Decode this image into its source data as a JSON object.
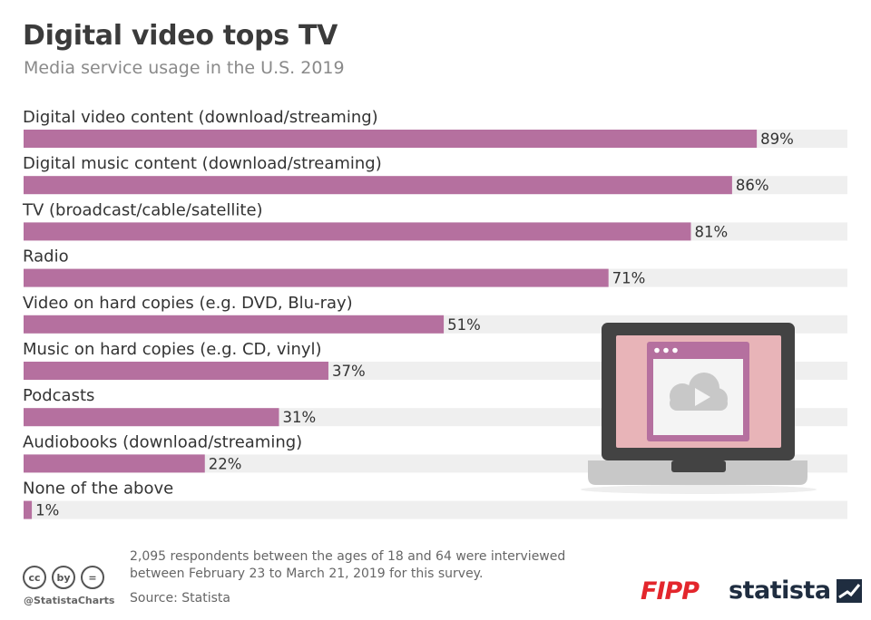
{
  "header": {
    "title": "Digital video tops TV",
    "subtitle": "Media service usage in the U.S. 2019"
  },
  "chart_data": {
    "type": "bar",
    "orientation": "horizontal",
    "title": "Digital video tops TV",
    "subtitle": "Media service usage in the U.S. 2019",
    "categories": [
      "Digital video content (download/streaming)",
      "Digital music content (download/streaming)",
      "TV (broadcast/cable/satellite)",
      "Radio",
      "Video on hard copies (e.g. DVD, Blu-ray)",
      "Music on hard copies (e.g. CD, vinyl)",
      "Podcasts",
      "Audiobooks (download/streaming)",
      "None of the above"
    ],
    "values": [
      89,
      86,
      81,
      71,
      51,
      37,
      31,
      22,
      1
    ],
    "value_labels": [
      "89%",
      "86%",
      "81%",
      "71%",
      "51%",
      "37%",
      "31%",
      "22%",
      "1%"
    ],
    "unit": "%",
    "xlim": [
      0,
      100
    ],
    "grid": false,
    "bar_color": "#b5709f",
    "track_color": "#efefef"
  },
  "footer": {
    "note_line1": "2,095 respondents between the ages of 18 and 64 were interviewed",
    "note_line2": "between February 23 to March 21, 2019 for this survey.",
    "source": "Source: Statista",
    "handle": "@StatistaCharts",
    "cc_badges": [
      "cc",
      "by",
      "="
    ],
    "logo_fipp": "FIPP",
    "logo_statista": "statista"
  },
  "illustration": {
    "icon": "laptop-cloud-video-icon",
    "colors": {
      "frame": "#434343",
      "screen": "#e8b4b8",
      "window_border": "#b5709f",
      "base": "#c8c8c8",
      "cloud": "#c8c8c8"
    }
  },
  "colors": {
    "accent": "#b5709f",
    "brand_red": "#e3262c",
    "brand_navy": "#1f2d40"
  }
}
